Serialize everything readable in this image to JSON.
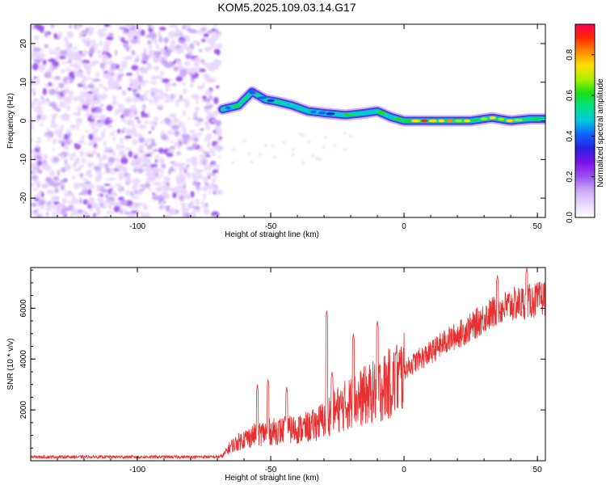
{
  "title": "KOM5.2025.109.03.14.G17",
  "colors": {
    "snr_line": "#e83030",
    "colormap": [
      "#ffffff",
      "#e8d6ff",
      "#c7a6f5",
      "#9b4ff0",
      "#7a12e8",
      "#2a20e0",
      "#1060ff",
      "#00c8e0",
      "#00e08a",
      "#18e018",
      "#a8f000",
      "#ffe000",
      "#ff8c00",
      "#ff2a00",
      "#ff0050"
    ]
  },
  "chart_data": [
    {
      "type": "heatmap",
      "name": "spectrogram",
      "xlabel": "Height of straight line (km)",
      "ylabel": "Frequency (Hz)",
      "xlim": [
        -140,
        53
      ],
      "ylim": [
        -25,
        25
      ],
      "x_ticks": [
        -100,
        -50,
        0,
        50
      ],
      "x_tick_labels": [
        "-100",
        "-50",
        "0",
        "50"
      ],
      "y_ticks": [
        20,
        10,
        0,
        -10,
        -20
      ],
      "y_tick_labels": [
        "20",
        "10",
        "0",
        "-10",
        "-20"
      ],
      "colorbar": {
        "label": "Normalized spectral amplitude",
        "range": [
          0,
          0.95
        ],
        "ticks": [
          0.0,
          0.2,
          0.4,
          0.6,
          0.8
        ],
        "tick_labels": [
          "0.0",
          "0.2",
          "0.4",
          "0.6",
          "0.8"
        ]
      },
      "noise_region_x": [
        -140,
        -69
      ],
      "signal_track": [
        {
          "x": -68,
          "f": 3.0,
          "a": 0.35
        },
        {
          "x": -62,
          "f": 4.0,
          "a": 0.55
        },
        {
          "x": -57,
          "f": 7.5,
          "a": 0.3
        },
        {
          "x": -52,
          "f": 5.5,
          "a": 0.4
        },
        {
          "x": -48,
          "f": 5.0,
          "a": 0.45
        },
        {
          "x": -42,
          "f": 4.0,
          "a": 0.4
        },
        {
          "x": -36,
          "f": 2.5,
          "a": 0.45
        },
        {
          "x": -30,
          "f": 2.0,
          "a": 0.4
        },
        {
          "x": -22,
          "f": 1.5,
          "a": 0.5
        },
        {
          "x": -15,
          "f": 2.0,
          "a": 0.55
        },
        {
          "x": -10,
          "f": 2.5,
          "a": 0.5
        },
        {
          "x": -5,
          "f": 1.0,
          "a": 0.5
        },
        {
          "x": 0,
          "f": 0.0,
          "a": 0.6
        },
        {
          "x": 5,
          "f": 0.0,
          "a": 0.8
        },
        {
          "x": 15,
          "f": 0.0,
          "a": 0.75
        },
        {
          "x": 25,
          "f": 0.0,
          "a": 0.65
        },
        {
          "x": 33,
          "f": 0.8,
          "a": 0.7
        },
        {
          "x": 40,
          "f": 0.0,
          "a": 0.7
        },
        {
          "x": 47,
          "f": 0.5,
          "a": 0.6
        },
        {
          "x": 53,
          "f": 0.5,
          "a": 0.55
        }
      ]
    },
    {
      "type": "line",
      "name": "snr",
      "xlabel": "Height of straight line (km)",
      "ylabel": "SNR (10 * v/v)",
      "xlim": [
        -140,
        53
      ],
      "ylim": [
        0,
        7600
      ],
      "x_ticks": [
        -100,
        -50,
        0,
        50
      ],
      "x_tick_labels": [
        "-100",
        "-50",
        "0",
        "50"
      ],
      "y_ticks": [
        2000,
        4000,
        6000
      ],
      "y_tick_labels": [
        "2000",
        "4000",
        "6000"
      ],
      "envelope": {
        "x": [
          -140,
          -70,
          -68,
          -65,
          -60,
          -55,
          -50,
          -45,
          -40,
          -35,
          -30,
          -28,
          -25,
          -20,
          -15,
          -10,
          -5,
          0,
          5,
          10,
          15,
          20,
          25,
          30,
          35,
          40,
          45,
          50,
          53
        ],
        "y": [
          150,
          150,
          200,
          600,
          900,
          1100,
          1200,
          1250,
          1300,
          1400,
          1700,
          1900,
          2100,
          2400,
          2650,
          2900,
          3200,
          3600,
          4000,
          4300,
          4700,
          5000,
          5300,
          5700,
          6000,
          6200,
          6300,
          6400,
          6500
        ]
      },
      "peaks": [
        {
          "x": -55,
          "y": 3000
        },
        {
          "x": -51,
          "y": 3200
        },
        {
          "x": -44,
          "y": 2900
        },
        {
          "x": -29,
          "y": 5900
        },
        {
          "x": -27,
          "y": 3500
        },
        {
          "x": -19,
          "y": 5000
        },
        {
          "x": -10,
          "y": 5500
        },
        {
          "x": -3,
          "y": 4300
        },
        {
          "x": 35,
          "y": 7300
        },
        {
          "x": 46,
          "y": 7600
        }
      ]
    }
  ]
}
